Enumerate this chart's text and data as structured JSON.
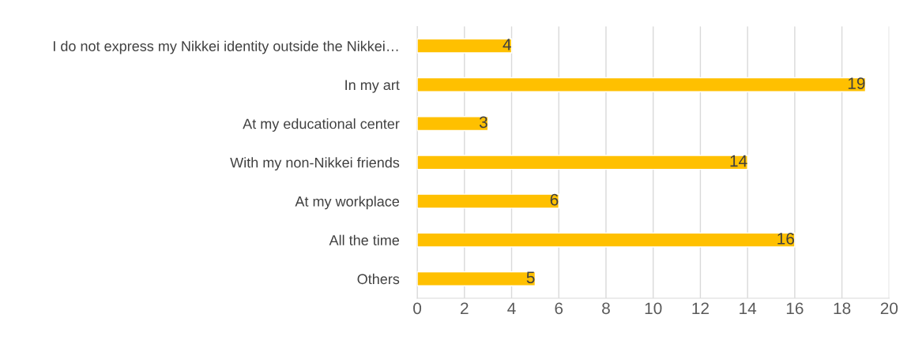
{
  "chart_data": {
    "type": "bar",
    "orientation": "horizontal",
    "categories": [
      "I do not express my Nikkei identity outside the Nikkei…",
      "In my art",
      "At my educational center",
      "With my non-Nikkei friends",
      "At my workplace",
      "All the time",
      "Others"
    ],
    "values": [
      4,
      19,
      3,
      14,
      6,
      16,
      5
    ],
    "color": "#ffc000",
    "xlim": [
      0,
      20
    ],
    "xticks": [
      0,
      2,
      4,
      6,
      8,
      10,
      12,
      14,
      16,
      18,
      20
    ],
    "grid": "x",
    "data_labels": true
  }
}
